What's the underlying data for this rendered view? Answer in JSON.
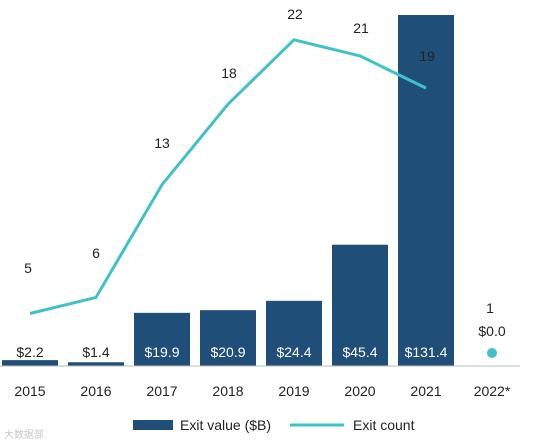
{
  "chart_data": {
    "type": "bar",
    "categories": [
      "2015",
      "2016",
      "2017",
      "2018",
      "2019",
      "2020",
      "2021",
      "2022*"
    ],
    "series": [
      {
        "name": "Exit value ($B)",
        "type": "bar",
        "values": [
          2.2,
          1.4,
          19.9,
          20.9,
          24.4,
          45.4,
          131.4,
          0.0
        ],
        "labels": [
          "$2.2",
          "$1.4",
          "$19.9",
          "$20.9",
          "$24.4",
          "$45.4",
          "$131.4",
          "$0.0"
        ]
      },
      {
        "name": "Exit count",
        "type": "line",
        "values": [
          5,
          6,
          13,
          18,
          22,
          21,
          19,
          1
        ],
        "labels": [
          "5",
          "6",
          "13",
          "18",
          "22",
          "21",
          "19",
          "1"
        ]
      }
    ],
    "colors": {
      "bar": "#1f4e79",
      "line": "#3ec1c9"
    },
    "legend": {
      "position": "bottom"
    },
    "grid": false
  },
  "watermark": "大数据部"
}
